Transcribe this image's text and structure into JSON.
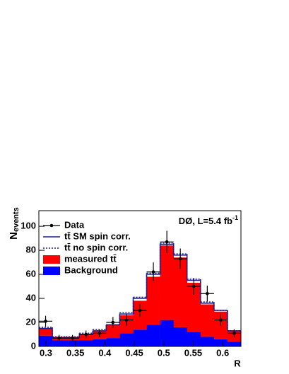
{
  "chart_data": {
    "type": "histogram",
    "ylabel": {
      "main": "N",
      "sub": "events"
    },
    "xlabel": "R",
    "annotation": {
      "text": "DØ, L=5.4 fb",
      "sup": "-1"
    },
    "bins": [
      0.288,
      0.3109,
      0.3337,
      0.3566,
      0.3795,
      0.4023,
      0.4252,
      0.4481,
      0.4709,
      0.4938,
      0.5167,
      0.5395,
      0.5624,
      0.5853,
      0.6081,
      0.631
    ],
    "xlim": [
      0.288,
      0.631
    ],
    "ylim": [
      0,
      113
    ],
    "xticks": [
      0.3,
      0.35,
      0.4,
      0.45,
      0.5,
      0.55,
      0.6
    ],
    "yticks": [
      0,
      20,
      40,
      60,
      80,
      100
    ],
    "legend": "upper left",
    "stack": [
      {
        "name": "Background",
        "color": "#0000ff",
        "values": [
          9,
          5,
          5,
          5,
          6,
          7,
          11,
          14,
          18,
          22,
          16,
          12,
          8,
          6,
          4
        ]
      },
      {
        "name": "measured tt̄",
        "color": "#ff0000",
        "values": [
          6,
          3,
          3,
          5,
          7,
          11,
          15,
          24,
          40,
          62,
          58,
          41,
          27,
          23,
          9
        ]
      }
    ],
    "lines": [
      {
        "name": "tt̄ SM spin corr.",
        "color": "#1c1c8c",
        "style": "solid",
        "values": [
          15,
          7,
          7,
          10,
          13,
          18,
          27,
          40,
          60,
          85,
          76,
          55,
          36,
          30,
          13
        ]
      },
      {
        "name": "tt̄ no spin corr.",
        "color": "#1c1c8c",
        "style": "dotted",
        "values": [
          16,
          8,
          8,
          11,
          14,
          18,
          28,
          41,
          61,
          86,
          77,
          56,
          37,
          30,
          13
        ]
      }
    ],
    "data": {
      "name": "Data",
      "color": "#000000",
      "values": [
        21,
        7,
        7,
        10,
        11,
        20,
        22,
        30,
        62,
        87,
        73,
        50,
        44,
        22,
        11
      ],
      "errors": [
        4.5,
        2.6,
        2.6,
        3.2,
        3.3,
        4.5,
        4.7,
        5.5,
        7.9,
        9.3,
        8.5,
        7,
        6.6,
        4.7,
        3.3
      ]
    }
  }
}
